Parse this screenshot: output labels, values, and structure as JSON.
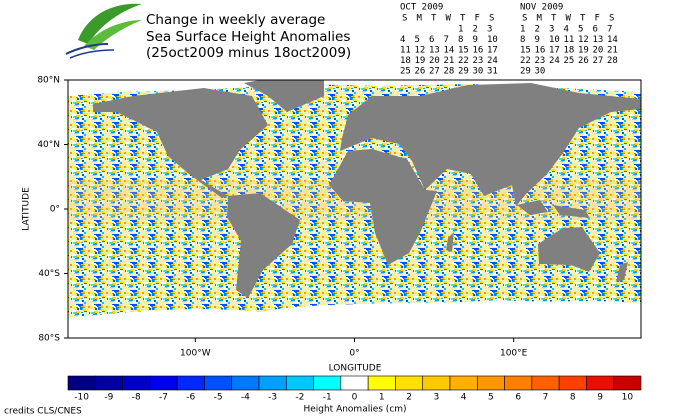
{
  "header": {
    "title_lines": [
      "Change in weekly average",
      "Sea Surface Height Anomalies",
      "(25oct2009 minus 18oct2009)"
    ]
  },
  "calendars": [
    {
      "month": "OCT 2009",
      "weekdays": [
        "S",
        "M",
        "T",
        "W",
        "T",
        "F",
        "S"
      ],
      "weeks": [
        [
          null,
          null,
          null,
          null,
          1,
          2,
          3
        ],
        [
          4,
          5,
          6,
          7,
          8,
          9,
          10
        ],
        [
          11,
          12,
          13,
          14,
          15,
          16,
          17
        ],
        [
          18,
          19,
          20,
          21,
          22,
          23,
          24
        ],
        [
          25,
          26,
          27,
          28,
          29,
          30,
          31
        ]
      ],
      "highlighted_weeks": [
        3,
        4
      ]
    },
    {
      "month": "NOV 2009",
      "weekdays": [
        "S",
        "M",
        "T",
        "W",
        "T",
        "F",
        "S"
      ],
      "weeks": [
        [
          1,
          2,
          3,
          4,
          5,
          6,
          7
        ],
        [
          8,
          9,
          10,
          11,
          12,
          13,
          14
        ],
        [
          15,
          16,
          17,
          18,
          19,
          20,
          21
        ],
        [
          22,
          23,
          24,
          25,
          26,
          27,
          28
        ],
        [
          29,
          30,
          null,
          null,
          null,
          null,
          null
        ]
      ],
      "highlighted_weeks": []
    }
  ],
  "highlight_color": "#1a1aa0",
  "map": {
    "x_label": "LONGITUDE",
    "y_label": "LATITUDE",
    "xlim": [
      -180,
      180
    ],
    "ylim": [
      -80,
      80
    ],
    "xticks": [
      {
        "value": -100,
        "label": "100°W"
      },
      {
        "value": 0,
        "label": "0°"
      },
      {
        "value": 100,
        "label": "100°E"
      }
    ],
    "yticks": [
      {
        "value": 80,
        "label": "80°N"
      },
      {
        "value": 40,
        "label": "40°N"
      },
      {
        "value": 0,
        "label": "0°"
      },
      {
        "value": -40,
        "label": "40°S"
      },
      {
        "value": -80,
        "label": "80°S"
      }
    ]
  },
  "colorbar": {
    "label": "Height Anomalies (cm)",
    "values": [
      -10,
      -9,
      -8,
      -7,
      -6,
      -5,
      -4,
      -3,
      -2,
      -1,
      0,
      1,
      2,
      3,
      4,
      5,
      6,
      7,
      8,
      9,
      10
    ],
    "colors": [
      "#000080",
      "#0000a0",
      "#0000c8",
      "#0000f0",
      "#0028ff",
      "#0050ff",
      "#0078ff",
      "#00a0ff",
      "#00c8ff",
      "#00ffff",
      "#ffffff",
      "#ffff00",
      "#ffe000",
      "#ffc800",
      "#ffb000",
      "#ff9800",
      "#ff8000",
      "#ff6000",
      "#ff4000",
      "#e81000",
      "#c80000"
    ]
  },
  "credits": "credits CLS/CNES"
}
